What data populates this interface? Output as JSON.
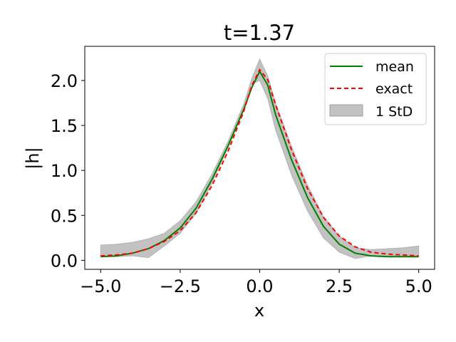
{
  "chart_data": {
    "type": "line",
    "title": "t=1.37",
    "xlabel": "x",
    "ylabel": "|h|",
    "xlim": [
      -5.5,
      5.5
    ],
    "ylim": [
      -0.1,
      2.38
    ],
    "xticks": [
      -5.0,
      -2.5,
      0.0,
      2.5,
      5.0
    ],
    "xtick_labels": [
      "−5.0",
      "−2.5",
      "0.0",
      "2.5",
      "5.0"
    ],
    "yticks": [
      0.0,
      0.5,
      1.0,
      1.5,
      2.0
    ],
    "ytick_labels": [
      "0.0",
      "0.5",
      "1.0",
      "1.5",
      "2.0"
    ],
    "grid": false,
    "legend_position": "top-right",
    "x": [
      -5.0,
      -4.5,
      -4.0,
      -3.5,
      -3.0,
      -2.5,
      -2.0,
      -1.5,
      -1.0,
      -0.5,
      -0.25,
      0.0,
      0.25,
      0.5,
      1.0,
      1.5,
      2.0,
      2.5,
      3.0,
      3.5,
      4.0,
      4.5,
      5.0
    ],
    "series": [
      {
        "name": "mean",
        "style": "solid",
        "color": "#008000",
        "values": [
          0.04,
          0.05,
          0.08,
          0.13,
          0.22,
          0.36,
          0.58,
          0.9,
          1.27,
          1.68,
          1.92,
          2.1,
          1.95,
          1.62,
          1.12,
          0.7,
          0.38,
          0.18,
          0.08,
          0.05,
          0.04,
          0.04,
          0.04
        ]
      },
      {
        "name": "exact",
        "style": "dashed",
        "color": "#ff0000",
        "values": [
          0.05,
          0.06,
          0.08,
          0.13,
          0.21,
          0.33,
          0.53,
          0.83,
          1.21,
          1.66,
          1.94,
          2.12,
          2.01,
          1.73,
          1.23,
          0.8,
          0.48,
          0.27,
          0.15,
          0.09,
          0.07,
          0.06,
          0.05
        ]
      },
      {
        "name": "1 StD",
        "style": "band",
        "color": "#999999",
        "lower": [
          0.04,
          0.04,
          0.05,
          0.03,
          0.16,
          0.3,
          0.52,
          0.86,
          1.25,
          1.68,
          1.96,
          2.0,
          1.8,
          1.45,
          0.95,
          0.55,
          0.25,
          0.09,
          0.02,
          0.05,
          0.05,
          0.05,
          0.05
        ],
        "upper": [
          0.17,
          0.18,
          0.2,
          0.24,
          0.3,
          0.44,
          0.65,
          0.96,
          1.32,
          1.74,
          2.02,
          2.24,
          2.05,
          1.75,
          1.27,
          0.84,
          0.49,
          0.27,
          0.14,
          0.12,
          0.13,
          0.14,
          0.16
        ]
      }
    ]
  },
  "legend": {
    "mean_label": "mean",
    "exact_label": "exact",
    "std_label": "1 StD"
  },
  "colors": {
    "mean": "#008000",
    "exact": "#ff0000",
    "band": "#999999"
  }
}
